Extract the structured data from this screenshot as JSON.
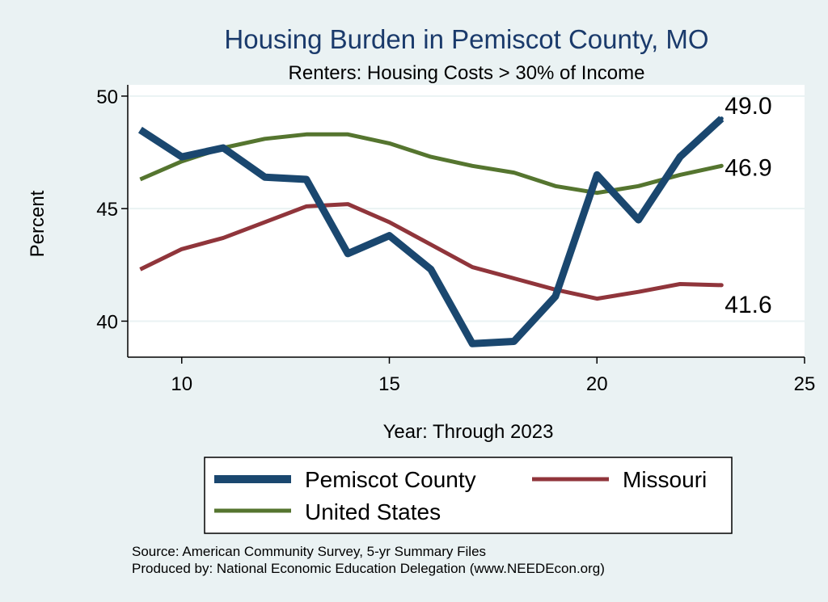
{
  "chart_data": {
    "type": "line",
    "title": "Housing Burden in Pemiscot County, MO",
    "subtitle": "Renters: Housing Costs > 30% of Income",
    "xlabel": "Year: Through 2023",
    "ylabel": "Percent",
    "xlim": [
      8.7,
      25
    ],
    "ylim": [
      38.4,
      50.5
    ],
    "xticks": [
      10,
      15,
      20,
      25
    ],
    "yticks": [
      40,
      45,
      50
    ],
    "grid": "horizontal",
    "legend_position": "bottom",
    "x": [
      9,
      10,
      11,
      12,
      13,
      14,
      15,
      16,
      17,
      18,
      19,
      20,
      21,
      22,
      23
    ],
    "series": [
      {
        "name": "Pemiscot County",
        "color": "#1a476f",
        "values": [
          48.5,
          47.3,
          47.7,
          46.4,
          46.3,
          43.0,
          43.8,
          42.3,
          39.0,
          39.1,
          41.1,
          46.5,
          44.5,
          47.3,
          49.0
        ],
        "end_label": "49.0"
      },
      {
        "name": "Missouri",
        "color": "#90353b",
        "values": [
          42.3,
          43.2,
          43.7,
          44.4,
          45.1,
          45.2,
          44.4,
          43.4,
          42.4,
          41.9,
          41.4,
          41.0,
          41.3,
          41.65,
          41.6
        ],
        "end_label": "41.6"
      },
      {
        "name": "United States",
        "color": "#55752f",
        "values": [
          46.3,
          47.1,
          47.7,
          48.1,
          48.3,
          48.3,
          47.9,
          47.3,
          46.9,
          46.6,
          46.0,
          45.7,
          46.0,
          46.5,
          46.9
        ],
        "end_label": "46.9"
      }
    ]
  },
  "notes": {
    "source": "Source: American Community Survey, 5-yr Summary Files",
    "produced_by": "Produced by: National Economic Education Delegation (www.NEEDEcon.org)"
  }
}
